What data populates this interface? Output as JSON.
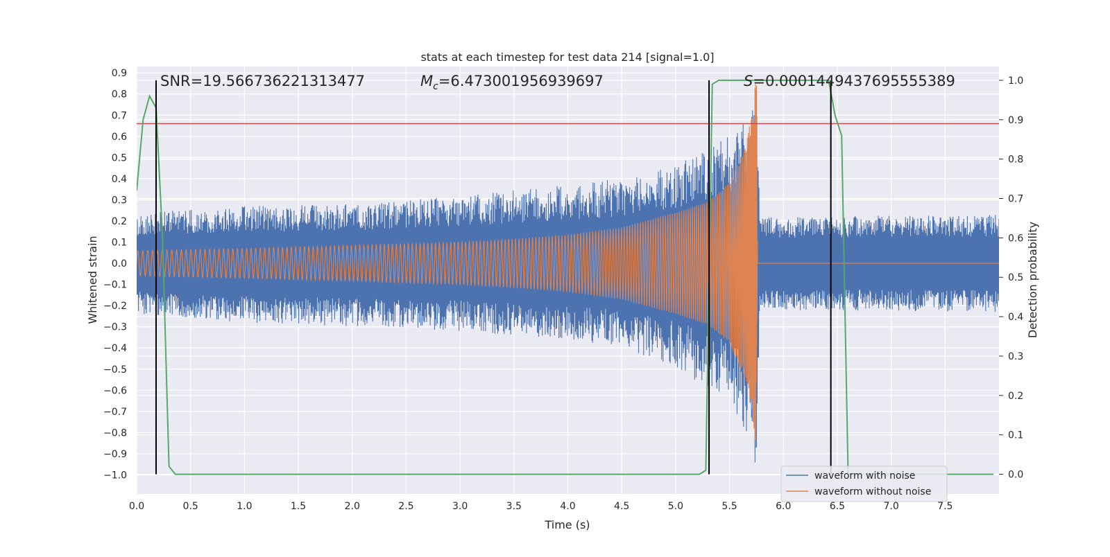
{
  "chart_data": {
    "type": "line",
    "title": "stats at each timestep for test data 214 [signal=1.0]",
    "xlabel": "Time (s)",
    "ylabel": "Whitened strain",
    "ylabel_right": "Detection probability",
    "xlim": [
      0.0,
      8.0
    ],
    "ylim": [
      -1.09,
      0.93
    ],
    "ylim_right": [
      -0.05,
      1.035
    ],
    "x_ticks": [
      0.0,
      0.5,
      1.0,
      1.5,
      2.0,
      2.5,
      3.0,
      3.5,
      4.0,
      4.5,
      5.0,
      5.5,
      6.0,
      6.5,
      7.0,
      7.5
    ],
    "x_tick_labels": [
      "0.0",
      "0.5",
      "1.0",
      "1.5",
      "2.0",
      "2.5",
      "3.0",
      "3.5",
      "4.0",
      "4.5",
      "5.0",
      "5.5",
      "6.0",
      "6.5",
      "7.0",
      "7.5"
    ],
    "y_ticks": [
      0.9,
      0.8,
      0.7,
      0.6,
      0.5,
      0.4,
      0.3,
      0.2,
      0.1,
      0.0,
      -0.1,
      -0.2,
      -0.3,
      -0.4,
      -0.5,
      -0.6,
      -0.7,
      -0.8,
      -0.9,
      -1.0
    ],
    "y_tick_labels": [
      "0.9",
      "0.8",
      "0.7",
      "0.6",
      "0.5",
      "0.4",
      "0.3",
      "0.2",
      "0.1",
      "0.0",
      "−0.1",
      "−0.2",
      "−0.3",
      "−0.4",
      "−0.5",
      "−0.6",
      "−0.7",
      "−0.8",
      "−0.9",
      "−1.0"
    ],
    "y_right_ticks": [
      1.0,
      0.9,
      0.8,
      0.7,
      0.6,
      0.5,
      0.4,
      0.3,
      0.2,
      0.1,
      0.0
    ],
    "y_right_tick_labels": [
      "1.0",
      "0.9",
      "0.8",
      "0.7",
      "0.6",
      "0.5",
      "0.4",
      "0.3",
      "0.2",
      "0.1",
      "0.0"
    ],
    "grid": true,
    "legend_position": "bottom-right",
    "annotations": {
      "snr": "SNR=19.566736221313477",
      "mc_symbol": "M",
      "mc_subscript": "c",
      "mc_value": "=6.473001956939697",
      "s_symbol": "S",
      "s_value": "=0.0001449437695555389"
    },
    "series": [
      {
        "name": "waveform with noise",
        "color": "#4c72b0",
        "envelope": [
          {
            "x": 0.0,
            "upper": 0.24,
            "lower": -0.24
          },
          {
            "x": 1.0,
            "upper": 0.27,
            "lower": -0.28
          },
          {
            "x": 2.0,
            "upper": 0.28,
            "lower": -0.3
          },
          {
            "x": 3.0,
            "upper": 0.32,
            "lower": -0.32
          },
          {
            "x": 4.0,
            "upper": 0.37,
            "lower": -0.36
          },
          {
            "x": 4.5,
            "upper": 0.4,
            "lower": -0.4
          },
          {
            "x": 5.0,
            "upper": 0.47,
            "lower": -0.5
          },
          {
            "x": 5.5,
            "upper": 0.6,
            "lower": -0.65
          },
          {
            "x": 5.7,
            "upper": 0.75,
            "lower": -0.85
          },
          {
            "x": 5.75,
            "upper": 0.85,
            "lower": -1.0
          },
          {
            "x": 5.78,
            "upper": 0.22,
            "lower": -0.22
          },
          {
            "x": 8.0,
            "upper": 0.23,
            "lower": -0.23
          }
        ]
      },
      {
        "name": "waveform without noise",
        "color": "#dd8452",
        "envelope": [
          {
            "x": 0.0,
            "amp": 0.06
          },
          {
            "x": 1.0,
            "amp": 0.07
          },
          {
            "x": 2.0,
            "amp": 0.085
          },
          {
            "x": 3.0,
            "amp": 0.1
          },
          {
            "x": 3.5,
            "amp": 0.115
          },
          {
            "x": 4.0,
            "amp": 0.135
          },
          {
            "x": 4.5,
            "amp": 0.17
          },
          {
            "x": 5.0,
            "amp": 0.24
          },
          {
            "x": 5.3,
            "amp": 0.29
          },
          {
            "x": 5.5,
            "amp": 0.38
          },
          {
            "x": 5.65,
            "amp": 0.55
          },
          {
            "x": 5.72,
            "amp": 0.75
          },
          {
            "x": 5.75,
            "amp": 0.9
          },
          {
            "x": 5.76,
            "amp": 0.0
          },
          {
            "x": 8.0,
            "amp": 0.0
          }
        ]
      },
      {
        "name": "detection probability",
        "color": "#55a868",
        "axis": "right",
        "x": [
          0.0,
          0.06,
          0.12,
          0.18,
          0.24,
          0.3,
          0.36,
          0.42,
          5.22,
          5.28,
          5.34,
          5.4,
          5.46,
          6.42,
          6.48,
          6.54,
          6.6,
          6.66,
          7.95
        ],
        "y": [
          0.72,
          0.9,
          0.96,
          0.93,
          0.6,
          0.02,
          0.0,
          0.0,
          0.0,
          0.01,
          0.99,
          1.0,
          1.0,
          1.0,
          0.91,
          0.86,
          0.0,
          0.0,
          0.0
        ]
      }
    ],
    "threshold_line": {
      "y": 0.66,
      "color": "#c44e52"
    },
    "vertical_lines": [
      0.18,
      5.31,
      6.44
    ]
  }
}
